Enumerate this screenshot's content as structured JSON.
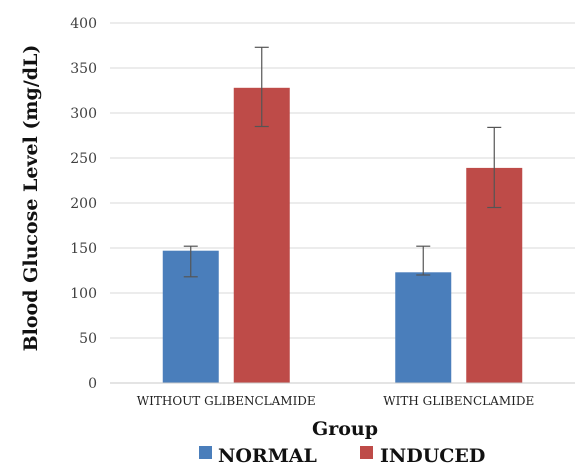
{
  "chart_data": {
    "type": "bar",
    "categories": [
      "WITHOUT GLIBENCLAMIDE",
      "WITH GLIBENCLAMIDE"
    ],
    "series": [
      {
        "name": "NORMAL",
        "color": "#4a7ebb",
        "values": [
          147,
          123
        ],
        "error": [
          [
            29,
            5
          ],
          [
            3,
            29
          ]
        ]
      },
      {
        "name": "INDUCED",
        "color": "#be4b48",
        "values": [
          328,
          239
        ],
        "error": [
          [
            43,
            45
          ],
          [
            44,
            45
          ]
        ]
      }
    ],
    "title": "",
    "xlabel": "Group",
    "ylabel": "Blood Glucose Level (mg/dL)",
    "ylim": [
      0,
      400
    ],
    "yticks": [
      0,
      50,
      100,
      150,
      200,
      250,
      300,
      350,
      400
    ],
    "yticklabels": [
      "0",
      "50",
      "100",
      "150",
      "200",
      "250",
      "300",
      "350",
      "400"
    ],
    "grid": true,
    "legend_position": "bottom"
  }
}
